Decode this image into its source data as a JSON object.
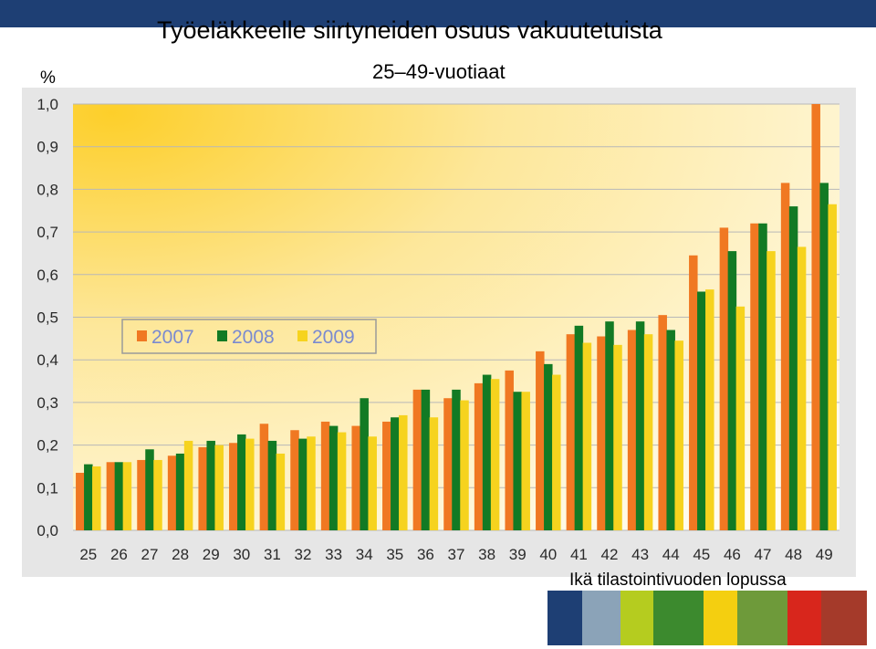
{
  "page": {
    "title": "Työeläkkeelle siirtyneiden osuus vakuutetuista",
    "subtitle": "25–49-vuotiaat",
    "unit_label": "%",
    "x_caption": "Ikä tilastointivuoden lopussa"
  },
  "chart_data": {
    "type": "bar",
    "categories": [
      "25",
      "26",
      "27",
      "28",
      "29",
      "30",
      "31",
      "32",
      "33",
      "34",
      "35",
      "36",
      "37",
      "38",
      "39",
      "40",
      "41",
      "42",
      "43",
      "44",
      "45",
      "46",
      "47",
      "48",
      "49"
    ],
    "series": [
      {
        "name": "2007",
        "color": "#f07822",
        "values": [
          0.135,
          0.16,
          0.165,
          0.175,
          0.195,
          0.205,
          0.25,
          0.235,
          0.255,
          0.245,
          0.255,
          0.33,
          0.31,
          0.345,
          0.375,
          0.42,
          0.46,
          0.455,
          0.47,
          0.505,
          0.645,
          0.71,
          0.72,
          0.815,
          1.0
        ]
      },
      {
        "name": "2008",
        "color": "#127a24",
        "values": [
          0.155,
          0.16,
          0.19,
          0.18,
          0.21,
          0.225,
          0.21,
          0.215,
          0.245,
          0.31,
          0.265,
          0.33,
          0.33,
          0.365,
          0.325,
          0.39,
          0.48,
          0.49,
          0.49,
          0.47,
          0.56,
          0.655,
          0.72,
          0.76,
          0.815
        ]
      },
      {
        "name": "2009",
        "color": "#f6d31e",
        "values": [
          0.15,
          0.16,
          0.165,
          0.21,
          0.2,
          0.215,
          0.18,
          0.22,
          0.23,
          0.22,
          0.27,
          0.265,
          0.305,
          0.355,
          0.325,
          0.365,
          0.44,
          0.435,
          0.46,
          0.445,
          0.565,
          0.525,
          0.655,
          0.665,
          0.765
        ]
      }
    ],
    "ylim": [
      0,
      1.0
    ],
    "yticks": [
      "0,0",
      "0,1",
      "0,2",
      "0,3",
      "0,4",
      "0,5",
      "0,6",
      "0,7",
      "0,8",
      "0,9",
      "1,0"
    ],
    "ytick_values": [
      0,
      0.1,
      0.2,
      0.3,
      0.4,
      0.5,
      0.6,
      0.7,
      0.8,
      0.9,
      1.0
    ],
    "grid": true,
    "legend_position": "upper-left"
  },
  "strip_colors": [
    "#1e3f74",
    "#8ba3b8",
    "#b5cc1f",
    "#3c8a2e",
    "#f4cf10",
    "#6e9a3a",
    "#d8261c",
    "#a53a2a"
  ],
  "strip_tiles": [
    "navy-tile",
    "winter-tree-photo",
    "lime-tile",
    "flowers-photo",
    "yellow-tile",
    "field-photo",
    "red-tile",
    "peppers-photo"
  ]
}
